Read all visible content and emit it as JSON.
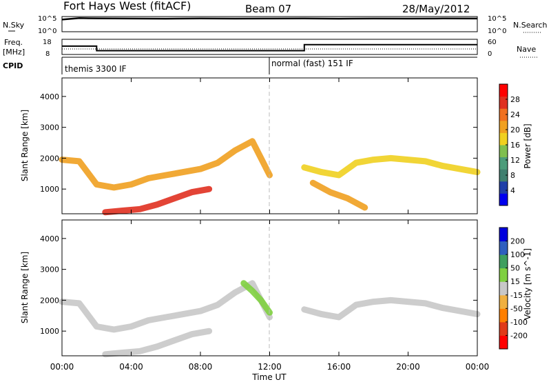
{
  "header": {
    "station": "Fort Hays West (fitACF)",
    "beam": "Beam 07",
    "date": "28/May/2012"
  },
  "panels": {
    "nsky": {
      "left_label": "N.Sky",
      "right_label": "N.Search",
      "left_ticks": [
        "10^5",
        "10^0"
      ],
      "right_ticks": [
        "10^5",
        "10^0"
      ]
    },
    "freq": {
      "left_label_1": "Freq.",
      "left_label_2": "[MHz]",
      "right_label": "Nave",
      "left_ticks": [
        "18",
        "8"
      ],
      "right_ticks": [
        "60",
        "0"
      ]
    },
    "cpid": {
      "label": "CPID",
      "segments": [
        {
          "start_hour": 0,
          "text": "themis 3300 IF"
        },
        {
          "start_hour": 12,
          "text": "normal (fast) 151 IF"
        }
      ]
    },
    "power": {
      "ylabel": "Slant Range [km]",
      "colorbar_label": "Power [dB]",
      "colorbar_ticks": [
        "28",
        "24",
        "20",
        "16",
        "12",
        "8",
        "4"
      ]
    },
    "velocity": {
      "ylabel": "Slant Range [km]",
      "colorbar_label": "Velocity [m s^-1]",
      "colorbar_ticks": [
        "200",
        "100",
        "50",
        "15",
        "-15",
        "-50",
        "-100",
        "-200"
      ]
    }
  },
  "colors": {
    "power_scale": [
      "#0000ee",
      "#1f3fa8",
      "#3f7f6f",
      "#4c9c7a",
      "#7fbf4f",
      "#f0d020",
      "#f0a020",
      "#f07020",
      "#e03020",
      "#ff0000"
    ],
    "velocity_scale": [
      "#ff0000",
      "#e03a18",
      "#ff7f00",
      "#f0b040",
      "#c8c8c8",
      "#7fd040",
      "#3f9f5f",
      "#2f5fbf",
      "#0000dd"
    ]
  },
  "chart_data": [
    {
      "type": "line",
      "series": [
        {
          "name": "N.Sky",
          "x": [
            0,
            1,
            2,
            4,
            6,
            8,
            10,
            12,
            14,
            16,
            18,
            20,
            22,
            24
          ],
          "y": [
            10000,
            30000,
            25000,
            22000,
            20000,
            23000,
            21000,
            22000,
            24000,
            20000,
            22000,
            21000,
            23000,
            22000
          ]
        }
      ],
      "xlim": [
        0,
        24
      ],
      "ylim": [
        1,
        100000
      ],
      "yscale": "log"
    },
    {
      "type": "line",
      "series": [
        {
          "name": "Freq.",
          "x": [
            0,
            2,
            2,
            14,
            14,
            24
          ],
          "y": [
            13.5,
            13.5,
            10.5,
            10.5,
            14.5,
            14.5
          ]
        }
      ],
      "xlim": [
        0,
        24
      ],
      "ylim": [
        8,
        18
      ]
    },
    {
      "type": "heatmap",
      "title": "Power",
      "x_ticks": [
        "00:00",
        "04:00",
        "08:00",
        "12:00",
        "16:00",
        "20:00",
        "00:00"
      ],
      "y_ticks": [
        "1000",
        "2000",
        "3000",
        "4000"
      ],
      "xlim": [
        0,
        24
      ],
      "ylim": [
        200,
        4600
      ],
      "zlim": [
        0,
        30
      ],
      "bands": [
        {
          "x": [
            0,
            1,
            2,
            3,
            4,
            5,
            6,
            7,
            8,
            9,
            10,
            11,
            12
          ],
          "y": [
            1950,
            1900,
            1150,
            1050,
            1150,
            1350,
            1450,
            1550,
            1650,
            1850,
            2250,
            2550,
            1450
          ],
          "power": 18
        },
        {
          "x": [
            14,
            15,
            16,
            17,
            18,
            19,
            20,
            21,
            22,
            23,
            24
          ],
          "y": [
            1700,
            1550,
            1450,
            1850,
            1950,
            2000,
            1950,
            1900,
            1750,
            1650,
            1550
          ],
          "power": 16
        },
        {
          "x": [
            2.5,
            3.5,
            4.5,
            5.5,
            6.5,
            7.5,
            8.5
          ],
          "y": [
            250,
            300,
            350,
            500,
            700,
            900,
            1000
          ],
          "power": 24
        },
        {
          "x": [
            14.5,
            15.5,
            16.5,
            17.5
          ],
          "y": [
            1200,
            900,
            700,
            400
          ],
          "power": 20
        }
      ]
    },
    {
      "type": "heatmap",
      "title": "Velocity",
      "x_ticks": [
        "00:00",
        "04:00",
        "08:00",
        "12:00",
        "16:00",
        "20:00",
        "00:00"
      ],
      "y_ticks": [
        "1000",
        "2000",
        "3000",
        "4000"
      ],
      "xlabel": "Time UT",
      "xlim": [
        0,
        24
      ],
      "ylim": [
        200,
        4600
      ],
      "zlim": [
        -200,
        200
      ],
      "bands": [
        {
          "x": [
            0,
            1,
            2,
            3,
            4,
            5,
            6,
            7,
            8,
            9,
            10,
            11,
            12
          ],
          "y": [
            1950,
            1900,
            1150,
            1050,
            1150,
            1350,
            1450,
            1550,
            1650,
            1850,
            2250,
            2550,
            1450
          ],
          "velocity": 0
        },
        {
          "x": [
            14,
            15,
            16,
            17,
            18,
            19,
            20,
            21,
            22,
            23,
            24
          ],
          "y": [
            1700,
            1550,
            1450,
            1850,
            1950,
            2000,
            1950,
            1900,
            1750,
            1650,
            1550
          ],
          "velocity": 0
        },
        {
          "x": [
            2.5,
            3.5,
            4.5,
            5.5,
            6.5,
            7.5,
            8.5
          ],
          "y": [
            250,
            300,
            350,
            500,
            700,
            900,
            1000
          ],
          "velocity": 0
        },
        {
          "x": [
            10.5,
            11,
            11.5,
            12
          ],
          "y": [
            2550,
            2300,
            2000,
            1600
          ],
          "velocity": 30
        }
      ]
    }
  ]
}
